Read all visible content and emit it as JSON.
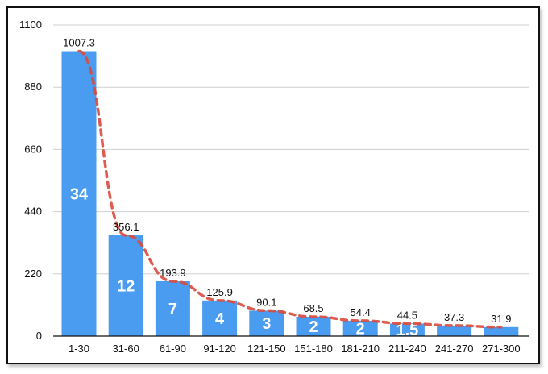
{
  "chart_data": {
    "type": "bar",
    "categories": [
      "1-30",
      "31-60",
      "61-90",
      "91-120",
      "121-150",
      "151-180",
      "181-210",
      "211-240",
      "241-270",
      "271-300"
    ],
    "values": [
      1007.3,
      356.1,
      193.9,
      125.9,
      90.1,
      68.5,
      54.4,
      44.5,
      37.3,
      31.9
    ],
    "inner_labels": [
      "34",
      "12",
      "7",
      "4",
      "3",
      "2",
      "2",
      "1.5",
      "",
      ""
    ],
    "yticks": [
      0,
      220,
      440,
      660,
      880,
      1100
    ],
    "ylim": [
      0,
      1100
    ],
    "grid": true,
    "trendline": "dashed curve through bar tops",
    "title": "",
    "xlabel": "",
    "ylabel": ""
  },
  "colors": {
    "bar": "#4a9cf0",
    "trend": "#d94a3c",
    "grid": "#cfcfcf",
    "axis": "#111111"
  }
}
